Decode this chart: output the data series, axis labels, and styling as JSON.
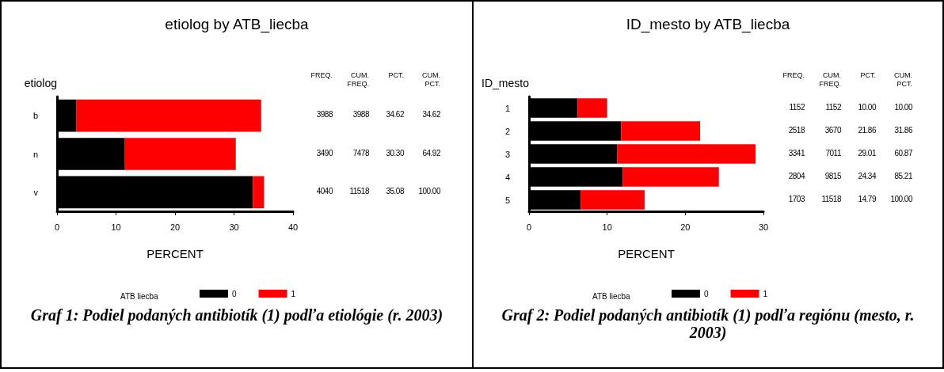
{
  "chart_data": [
    {
      "type": "bar",
      "orientation": "horizontal",
      "stacked": true,
      "title": "etiolog by ATB_liecba",
      "xlabel": "PERCENT",
      "ylabel": "etiolog",
      "legend_title": "ATB liecba",
      "legend": "bottom",
      "grid": false,
      "categories": [
        "b",
        "n",
        "v"
      ],
      "xlim": [
        0,
        40
      ],
      "xticks": [
        0,
        10,
        20,
        30,
        40
      ],
      "series": [
        {
          "name": "0",
          "color": "#000000",
          "values": [
            3.3,
            11.5,
            33.2
          ]
        },
        {
          "name": "1",
          "color": "#ff0000",
          "values": [
            31.3,
            18.8,
            1.9
          ]
        }
      ],
      "annotations": [
        "FREQ.",
        "CUM. FREQ.",
        "PCT.",
        "CUM. PCT.",
        "3988",
        "3988",
        "34.62",
        "34.62",
        "3490",
        "7478",
        "30.30",
        "64.92",
        "4040",
        "11518",
        "35.08",
        "100.00",
        "Graf 1: Podiel podaných antibiotík (1) podľa etiológie (r. 2003)"
      ]
    },
    {
      "type": "bar",
      "orientation": "horizontal",
      "stacked": true,
      "title": "ID_mesto by ATB_liecba",
      "xlabel": "PERCENT",
      "ylabel": "ID_mesto",
      "legend_title": "ATB liecba",
      "legend": "bottom",
      "grid": false,
      "categories": [
        "1",
        "2",
        "3",
        "4",
        "5"
      ],
      "xlim": [
        0,
        30
      ],
      "xticks": [
        0,
        10,
        20,
        30
      ],
      "series": [
        {
          "name": "0",
          "color": "#000000",
          "values": [
            6.2,
            11.8,
            11.3,
            12.0,
            6.6
          ]
        },
        {
          "name": "1",
          "color": "#ff0000",
          "values": [
            3.8,
            10.1,
            17.7,
            12.3,
            8.2
          ]
        }
      ],
      "annotations": [
        "FREQ.",
        "CUM. FREQ.",
        "PCT.",
        "CUM. PCT.",
        "1152",
        "1152",
        "10.00",
        "10.00",
        "2518",
        "3670",
        "21.86",
        "31.86",
        "3341",
        "7011",
        "29.01",
        "60.87",
        "2804",
        "9815",
        "24.34",
        "85.21",
        "1703",
        "11518",
        "14.79",
        "100.00",
        "Graf 2: Podiel podaných antibiotík (1) podľa regiónu (mesto, r. 2003)"
      ]
    }
  ]
}
